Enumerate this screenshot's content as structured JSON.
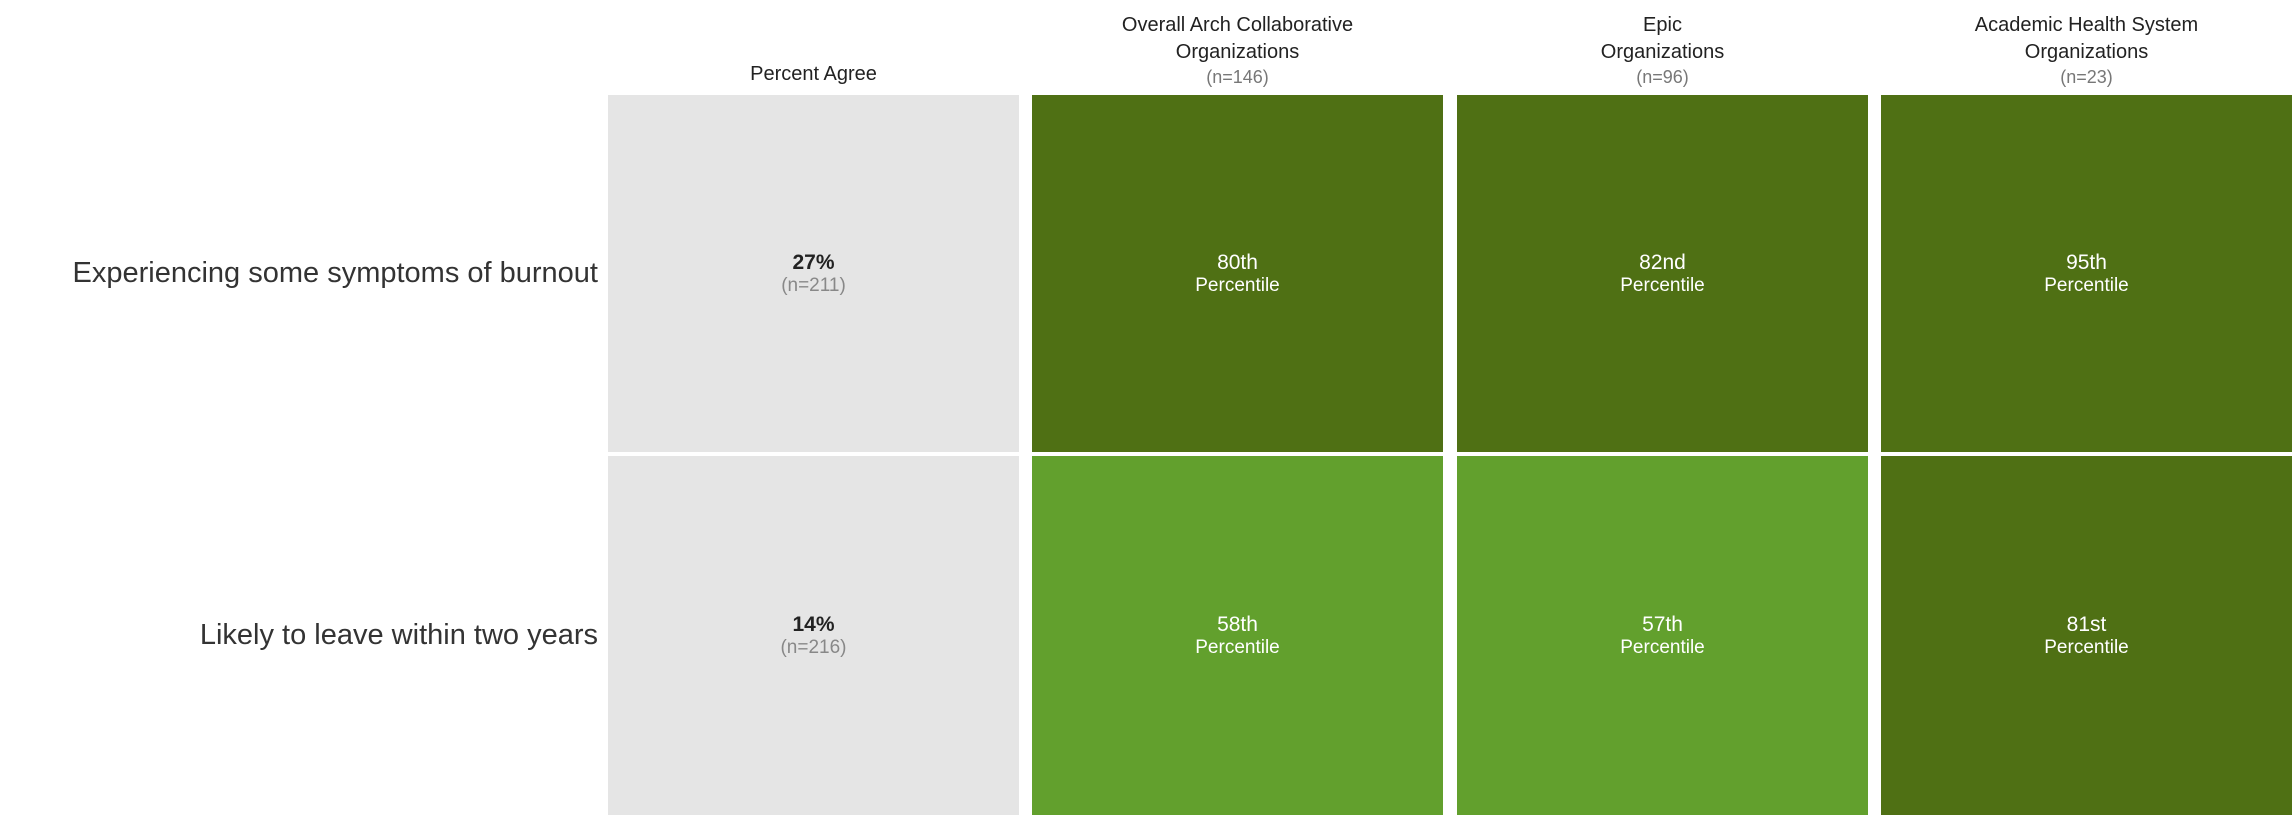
{
  "columns": [
    {
      "lines": [
        "Percent Agree"
      ]
    },
    {
      "lines": [
        "Overall Arch Collaborative",
        "Organizations"
      ],
      "n": "(n=146)"
    },
    {
      "lines": [
        "Epic",
        "Organizations"
      ],
      "n": "(n=96)"
    },
    {
      "lines": [
        "Academic Health System",
        "Organizations"
      ],
      "n": "(n=23)"
    }
  ],
  "rows": [
    {
      "label": "Experiencing some symptoms of burnout",
      "percent": "27%",
      "n": "(n=211)",
      "cells": [
        {
          "rank": "80th",
          "sub": "Percentile",
          "color": "#4f7014"
        },
        {
          "rank": "82nd",
          "sub": "Percentile",
          "color": "#4f7014"
        },
        {
          "rank": "95th",
          "sub": "Percentile",
          "color": "#4f7014"
        }
      ]
    },
    {
      "label": "Likely to leave within two years",
      "percent": "14%",
      "n": "(n=216)",
      "cells": [
        {
          "rank": "58th",
          "sub": "Percentile",
          "color": "#62a02d"
        },
        {
          "rank": "57th",
          "sub": "Percentile",
          "color": "#62a02d"
        },
        {
          "rank": "81st",
          "sub": "Percentile",
          "color": "#4f7014"
        }
      ]
    }
  ]
}
